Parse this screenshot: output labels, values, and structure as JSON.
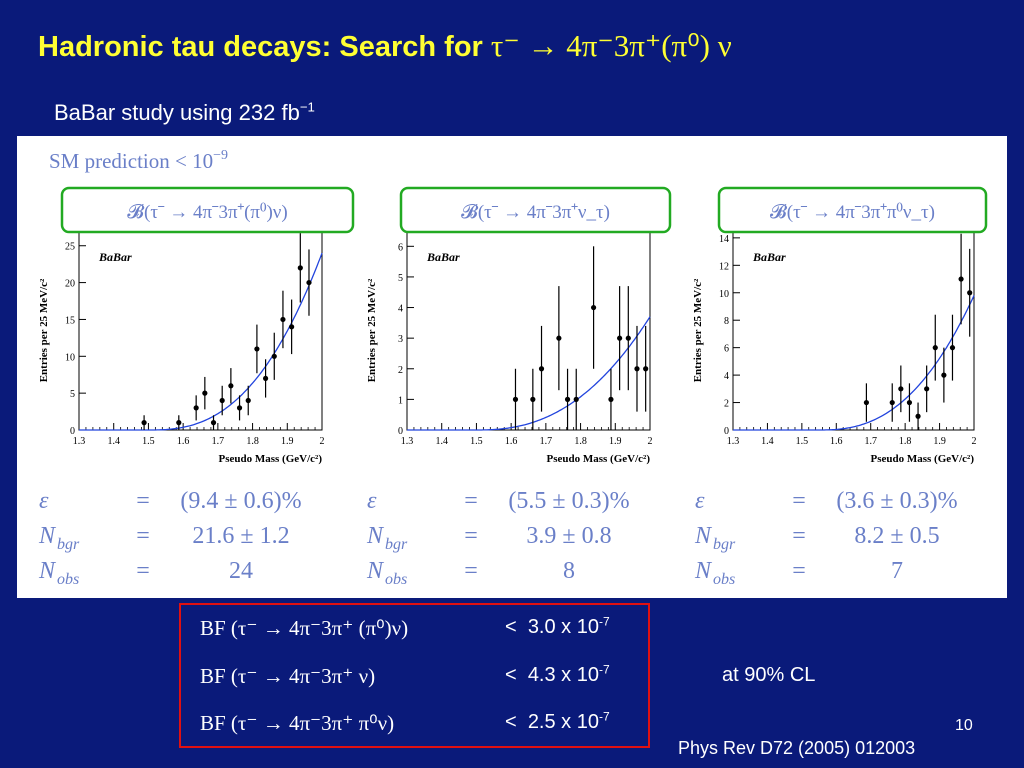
{
  "slide": {
    "title_text": "Hadronic tau decays: Search for ",
    "title_math": "τ⁻ → 4π⁻3π⁺(π⁰) ν",
    "subtitle_text": "BaBar study using 232 fb",
    "subtitle_sup": "−1",
    "page_number": "10",
    "reference": "Phys Rev D72 (2005) 012003",
    "confidence_level": "at 90% CL"
  },
  "sm_prediction": {
    "text": "SM prediction < 10",
    "exponent": "−9"
  },
  "colors": {
    "background": "#0a1a7a",
    "title": "#ffff33",
    "box_green": "#22aa22",
    "box_red": "#e01010",
    "fit_curve": "#2244dd",
    "math_text": "#6a7fc8"
  },
  "chart_data": [
    {
      "type": "scatter",
      "box_label": "𝓑(τ⁻ → 4π⁻3π⁺(π⁰)ν)",
      "watermark": "BaBar",
      "xlabel": "Pseudo Mass (GeV/c²)",
      "ylabel": "Entries per 25 MeV/c²",
      "xlim": [
        1.3,
        2.0
      ],
      "ylim": [
        0,
        27
      ],
      "xticks": [
        "1.3",
        "1.4",
        "1.5",
        "1.6",
        "1.7",
        "1.8",
        "1.9",
        "2"
      ],
      "yticks": [
        "0",
        "5",
        "10",
        "15",
        "20",
        "25"
      ],
      "ytick_values": [
        0,
        5,
        10,
        15,
        20,
        25
      ],
      "points": [
        {
          "x": 1.4875,
          "y": 1,
          "err": 1
        },
        {
          "x": 1.5875,
          "y": 1,
          "err": 1
        },
        {
          "x": 1.6375,
          "y": 3,
          "err": 1.7
        },
        {
          "x": 1.6625,
          "y": 5,
          "err": 2.2
        },
        {
          "x": 1.6875,
          "y": 1,
          "err": 1
        },
        {
          "x": 1.7125,
          "y": 4,
          "err": 2
        },
        {
          "x": 1.7375,
          "y": 6,
          "err": 2.4
        },
        {
          "x": 1.7625,
          "y": 3,
          "err": 1.7
        },
        {
          "x": 1.7875,
          "y": 4,
          "err": 2
        },
        {
          "x": 1.8125,
          "y": 11,
          "err": 3.3
        },
        {
          "x": 1.8375,
          "y": 7,
          "err": 2.6
        },
        {
          "x": 1.8625,
          "y": 10,
          "err": 3.2
        },
        {
          "x": 1.8875,
          "y": 15,
          "err": 3.9
        },
        {
          "x": 1.9125,
          "y": 14,
          "err": 3.7
        },
        {
          "x": 1.9375,
          "y": 22,
          "err": 4.7
        },
        {
          "x": 1.9625,
          "y": 20,
          "err": 4.5
        }
      ],
      "fit": {
        "x0": 1.5,
        "scale": 24,
        "power": 2.6
      },
      "results": [
        {
          "sym": "ε",
          "eq": "=",
          "val": "(9.4 ± 0.6)%"
        },
        {
          "sym": "N",
          "sub": "bgr",
          "eq": "=",
          "val": "21.6 ± 1.2"
        },
        {
          "sym": "N",
          "sub": "obs",
          "eq": "=",
          "val": "24"
        }
      ]
    },
    {
      "type": "scatter",
      "box_label": "𝓑(τ⁻ → 4π⁻3π⁺ν_τ)",
      "watermark": "BaBar",
      "xlabel": "Pseudo Mass (GeV/c²)",
      "ylabel": "Entries per 25 MeV/c²",
      "xlim": [
        1.3,
        2.0
      ],
      "ylim": [
        0,
        6.5
      ],
      "xticks": [
        "1.3",
        "1.4",
        "1.5",
        "1.6",
        "1.7",
        "1.8",
        "1.9",
        "2"
      ],
      "yticks": [
        "0",
        "1",
        "2",
        "3",
        "4",
        "5",
        "6"
      ],
      "ytick_values": [
        0,
        1,
        2,
        3,
        4,
        5,
        6
      ],
      "points": [
        {
          "x": 1.6125,
          "y": 1,
          "err": 1
        },
        {
          "x": 1.6625,
          "y": 1,
          "err": 1
        },
        {
          "x": 1.6875,
          "y": 2,
          "err": 1.4
        },
        {
          "x": 1.7375,
          "y": 3,
          "err": 1.7
        },
        {
          "x": 1.7625,
          "y": 1,
          "err": 1
        },
        {
          "x": 1.7875,
          "y": 1,
          "err": 1
        },
        {
          "x": 1.8375,
          "y": 4,
          "err": 2
        },
        {
          "x": 1.8875,
          "y": 1,
          "err": 1
        },
        {
          "x": 1.9125,
          "y": 3,
          "err": 1.7
        },
        {
          "x": 1.9375,
          "y": 3,
          "err": 1.7
        },
        {
          "x": 1.9625,
          "y": 2,
          "err": 1.4
        },
        {
          "x": 1.9875,
          "y": 2,
          "err": 1.4
        }
      ],
      "fit": {
        "x0": 1.5,
        "scale": 3.7,
        "power": 2.4
      },
      "results": [
        {
          "sym": "ε",
          "eq": "=",
          "val": "(5.5 ± 0.3)%"
        },
        {
          "sym": "N",
          "sub": "bgr",
          "eq": "=",
          "val": "3.9 ± 0.8"
        },
        {
          "sym": "N",
          "sub": "obs",
          "eq": "=",
          "val": "8"
        }
      ]
    },
    {
      "type": "scatter",
      "box_label": "𝓑(τ⁻ → 4π⁻3π⁺π⁰ν_τ)",
      "watermark": "BaBar",
      "xlabel": "Pseudo Mass (GeV/c²)",
      "ylabel": "Entries per 25 MeV/c²",
      "xlim": [
        1.3,
        2.0
      ],
      "ylim": [
        0,
        14.5
      ],
      "xticks": [
        "1.3",
        "1.4",
        "1.5",
        "1.6",
        "1.7",
        "1.8",
        "1.9",
        "2"
      ],
      "yticks": [
        "0",
        "2",
        "4",
        "6",
        "8",
        "10",
        "12",
        "14"
      ],
      "ytick_values": [
        0,
        2,
        4,
        6,
        8,
        10,
        12,
        14
      ],
      "points": [
        {
          "x": 1.6875,
          "y": 2,
          "err": 1.4
        },
        {
          "x": 1.7625,
          "y": 2,
          "err": 1.4
        },
        {
          "x": 1.7875,
          "y": 3,
          "err": 1.7
        },
        {
          "x": 1.8125,
          "y": 2,
          "err": 1.4
        },
        {
          "x": 1.8375,
          "y": 1,
          "err": 1
        },
        {
          "x": 1.8625,
          "y": 3,
          "err": 1.7
        },
        {
          "x": 1.8875,
          "y": 6,
          "err": 2.4
        },
        {
          "x": 1.9125,
          "y": 4,
          "err": 2
        },
        {
          "x": 1.9375,
          "y": 6,
          "err": 2.4
        },
        {
          "x": 1.9625,
          "y": 11,
          "err": 3.3
        },
        {
          "x": 1.9875,
          "y": 10,
          "err": 3.2
        }
      ],
      "fit": {
        "x0": 1.55,
        "scale": 9.8,
        "power": 2.5
      },
      "results": [
        {
          "sym": "ε",
          "eq": "=",
          "val": "(3.6 ± 0.3)%"
        },
        {
          "sym": "N",
          "sub": "bgr",
          "eq": "=",
          "val": "8.2 ± 0.5"
        },
        {
          "sym": "N",
          "sub": "obs",
          "eq": "=",
          "val": "7"
        }
      ]
    }
  ],
  "branching_fractions": [
    {
      "lhs": "BF (τ⁻ → 4π⁻3π⁺ (π⁰)ν)",
      "relation": "<",
      "mantissa": "3.0 x 10",
      "exponent": "-7"
    },
    {
      "lhs": "BF (τ⁻ → 4π⁻3π⁺ ν)",
      "relation": "<",
      "mantissa": "4.3 x 10",
      "exponent": "-7"
    },
    {
      "lhs": "BF (τ⁻ → 4π⁻3π⁺ π⁰ν)",
      "relation": "<",
      "mantissa": "2.5 x 10",
      "exponent": "-7"
    }
  ]
}
